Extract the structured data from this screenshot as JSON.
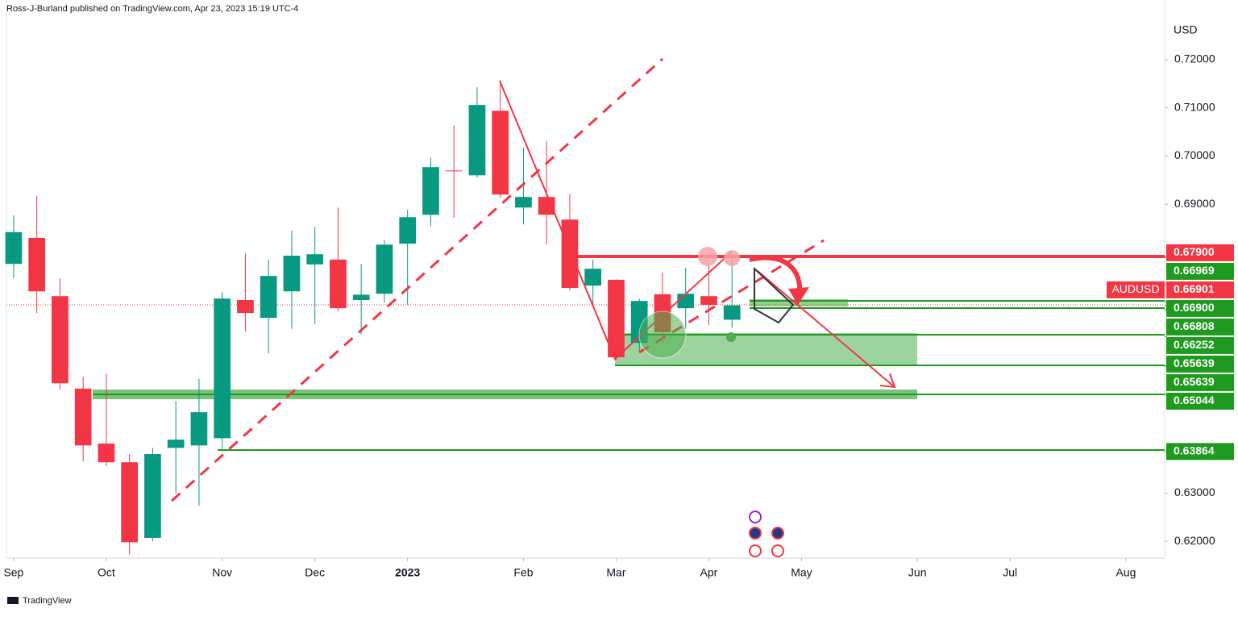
{
  "header": {
    "text": "Ross-J-Burland published on TradingView.com, Apr 23, 2023 15:19 UTC-4"
  },
  "footer": {
    "brand": "TradingView"
  },
  "chart_data": {
    "type": "candlestick",
    "symbol": "AUDUSD",
    "currency": "USD",
    "up_color": "#089981",
    "down_color": "#f23645",
    "x": [
      0,
      1,
      2,
      3,
      4,
      5,
      6,
      7,
      8,
      9,
      10,
      11,
      12,
      13,
      14,
      15,
      16,
      17,
      18,
      19,
      20,
      21,
      22,
      23,
      24,
      25,
      26,
      27,
      28,
      29,
      30,
      31
    ],
    "open": [
      0.6776,
      0.683,
      0.6709,
      0.6517,
      0.6403,
      0.6364,
      0.6207,
      0.6394,
      0.6399,
      0.6414,
      0.6701,
      0.6664,
      0.6719,
      0.6775,
      0.6785,
      0.6701,
      0.6714,
      0.6818,
      0.6878,
      0.697,
      0.696,
      0.7094,
      0.6893,
      0.6915,
      0.6868,
      0.6731,
      0.6743,
      0.6612,
      0.6713,
      0.6684,
      0.6709,
      0.666
    ],
    "high": [
      0.6877,
      0.6917,
      0.6746,
      0.6542,
      0.6548,
      0.6381,
      0.6394,
      0.6491,
      0.6537,
      0.6718,
      0.6798,
      0.6785,
      0.6845,
      0.6852,
      0.6893,
      0.6776,
      0.6826,
      0.6888,
      0.6996,
      0.7064,
      0.7143,
      0.7156,
      0.7017,
      0.7031,
      0.6921,
      0.6785,
      0.6744,
      0.6704,
      0.6758,
      0.6768,
      0.678,
      0.679
    ],
    "low": [
      0.6746,
      0.6674,
      0.6515,
      0.6366,
      0.6356,
      0.6172,
      0.62,
      0.6299,
      0.6274,
      0.6389,
      0.6636,
      0.659,
      0.6641,
      0.6651,
      0.6677,
      0.663,
      0.6696,
      0.6691,
      0.6855,
      0.6872,
      0.6955,
      0.6913,
      0.6858,
      0.6816,
      0.6721,
      0.6687,
      0.6577,
      0.6592,
      0.6612,
      0.6641,
      0.6649,
      0.6643
    ],
    "close": [
      0.6842,
      0.6719,
      0.6528,
      0.6399,
      0.6364,
      0.6198,
      0.6381,
      0.6411,
      0.6468,
      0.6704,
      0.6674,
      0.6751,
      0.6793,
      0.6796,
      0.6684,
      0.6712,
      0.6816,
      0.6873,
      0.6977,
      0.6969,
      0.7106,
      0.692,
      0.6915,
      0.6878,
      0.6726,
      0.6766,
      0.6582,
      0.6699,
      0.6634,
      0.6714,
      0.6691,
      0.669
    ],
    "xlim": [
      -0.31,
      49.67
    ],
    "xticks": [
      {
        "value": 0,
        "label": "Sep"
      },
      {
        "value": 4,
        "label": "Oct"
      },
      {
        "value": 9,
        "label": "Nov"
      },
      {
        "value": 13,
        "label": "Dec"
      },
      {
        "value": 17,
        "label": "2023"
      },
      {
        "value": 22,
        "label": "Feb"
      },
      {
        "value": 26,
        "label": "Mar"
      },
      {
        "value": 30,
        "label": "Apr"
      },
      {
        "value": 34,
        "label": "May"
      },
      {
        "value": 39,
        "label": "Jun"
      },
      {
        "value": 43,
        "label": "Jul"
      },
      {
        "value": 48,
        "label": "Aug"
      }
    ],
    "ylim": [
      0.6165,
      0.7324
    ],
    "yticks": [
      {
        "value": 0.72,
        "label": "0.72000"
      },
      {
        "value": 0.71,
        "label": "0.71000"
      },
      {
        "value": 0.7,
        "label": "0.70000"
      },
      {
        "value": 0.69,
        "label": "0.69000"
      },
      {
        "value": 0.63,
        "label": "0.63000"
      },
      {
        "value": 0.62,
        "label": "0.62000"
      }
    ],
    "last_price": {
      "value": 0.66901,
      "label": "0.66901",
      "color": "#f23645"
    },
    "levels": [
      {
        "value": 0.679,
        "label": "0.67900",
        "color": "#f23645"
      },
      {
        "value": 0.66969,
        "label": "0.66969",
        "color": "#1e9a1e"
      },
      {
        "value": 0.669,
        "label": "0.66900",
        "color": "#1e9a1e"
      },
      {
        "value": 0.66808,
        "label": "0.66808",
        "color": "#1e9a1e"
      },
      {
        "value": 0.66252,
        "label": "0.66252",
        "color": "#1e9a1e"
      },
      {
        "value": 0.65639,
        "label": "0.65639",
        "color": "#1e9a1e"
      },
      {
        "value": 0.65639,
        "label": "0.65639",
        "color": "#1e9a1e"
      },
      {
        "value": 0.65044,
        "label": "0.65044",
        "color": "#1e9a1e"
      },
      {
        "value": 0.63864,
        "label": "0.63864",
        "color": "#1e9a1e"
      }
    ]
  }
}
